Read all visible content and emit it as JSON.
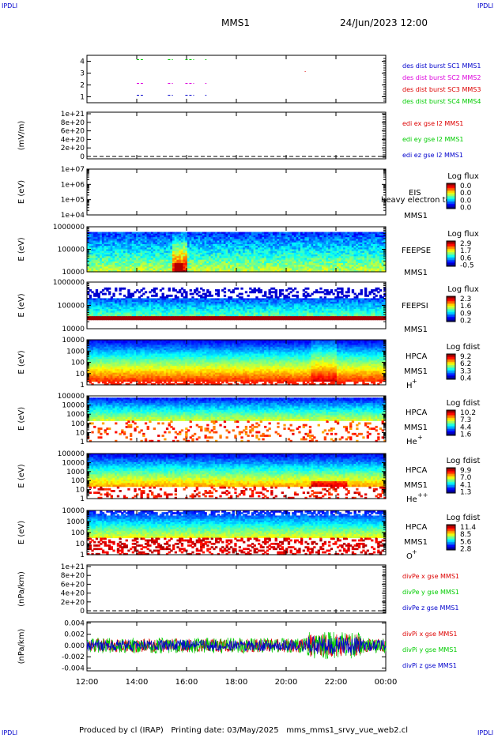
{
  "corners": {
    "tl": "IPDLI",
    "tr": "IPDLI",
    "bl": "IPDLI",
    "br": "IPDLI"
  },
  "header": {
    "spacecraft": "MMS1",
    "date": "24/Jun/2023 12:00"
  },
  "footer": "Produced by cl (IRAP)   Printing date: 03/May/2025   mms_mms1_srvy_vue_web2.cl",
  "colors": {
    "blue": "#0000cc",
    "magenta": "#dd00dd",
    "red": "#dd0000",
    "green": "#00cc00"
  },
  "chart_data": [
    {
      "type": "scatter",
      "panel": "burst",
      "ylim": [
        0.5,
        4.5
      ],
      "yticks": [
        "1",
        "2",
        "3",
        "4"
      ],
      "legend": [
        {
          "text": "des dist burst SC1 MMS1",
          "color": "#0000cc"
        },
        {
          "text": "des dist burst SC2 MMS2",
          "color": "#dd00dd"
        },
        {
          "text": "des dist burst SC3 MMS3",
          "color": "#dd0000"
        },
        {
          "text": "des dist burst SC4 MMS4",
          "color": "#00cc00"
        }
      ],
      "series": [
        {
          "name": "des dist burst SC4 MMS4",
          "y": 4,
          "intervals": [
            [
              14.0,
              14.25
            ],
            [
              15.25,
              15.45
            ],
            [
              15.95,
              16.3
            ],
            [
              16.75,
              16.8
            ]
          ]
        },
        {
          "name": "des dist burst SC3 MMS3",
          "y": 3,
          "intervals": [
            [
              20.75,
              20.78
            ]
          ]
        },
        {
          "name": "des dist burst SC2 MMS2",
          "y": 2,
          "intervals": [
            [
              14.0,
              14.25
            ],
            [
              15.25,
              15.45
            ],
            [
              15.95,
              16.3
            ],
            [
              16.75,
              16.8
            ]
          ]
        },
        {
          "name": "des dist burst SC1 MMS1",
          "y": 1,
          "intervals": [
            [
              14.0,
              14.25
            ],
            [
              15.25,
              15.45
            ],
            [
              15.95,
              16.3
            ],
            [
              16.75,
              16.8
            ]
          ]
        }
      ]
    },
    {
      "type": "line",
      "panel": "edi",
      "ylabel": "(mV/m)",
      "yticks": [
        "0",
        "2e+20",
        "4e+20",
        "6e+20",
        "8e+20",
        "1e+21"
      ],
      "legend": [
        {
          "text": "edi ex gse l2 MMS1",
          "color": "#dd0000"
        },
        {
          "text": "edi ey gse l2 MMS1",
          "color": "#00cc00"
        },
        {
          "text": "edi ez gse l2 MMS1",
          "color": "#0000cc"
        }
      ]
    },
    {
      "type": "heatmap",
      "panel": "eis",
      "ylabel": "E (eV)",
      "yticks": [
        "1e+04",
        "1e+05",
        "1e+06",
        "1e+07"
      ],
      "instrument": "EIS",
      "sc": "MMS1",
      "extra_label": "heavy electron to",
      "cbar_title": "Log flux",
      "cbar_ticks": [
        "0.0",
        "0.0",
        "0.0",
        "0.0"
      ]
    },
    {
      "type": "heatmap",
      "panel": "feeps_e",
      "ylabel": "E (eV)",
      "yticks": [
        "10000",
        "100000",
        "1000000"
      ],
      "instrument": "FEEPSE",
      "sc": "MMS1",
      "cbar_title": "Log flux",
      "cbar_ticks": [
        "2.9",
        "1.7",
        "0.6",
        "-0.5"
      ]
    },
    {
      "type": "heatmap",
      "panel": "feeps_i",
      "ylabel": "E (eV)",
      "yticks": [
        "10000",
        "100000",
        "1000000"
      ],
      "instrument": "FEEPSI",
      "sc": "MMS1",
      "cbar_title": "Log flux",
      "cbar_ticks": [
        "2.3",
        "1.6",
        "0.9",
        "0.2"
      ]
    },
    {
      "type": "heatmap",
      "panel": "hpca_h",
      "ylabel": "E (eV)",
      "yticks": [
        "1",
        "10",
        "100",
        "1000",
        "10000"
      ],
      "instrument": "HPCA",
      "sc": "MMS1",
      "species": "H",
      "charge": "+",
      "cbar_title": "Log fdist",
      "cbar_ticks": [
        "9.2",
        "6.2",
        "3.3",
        "0.4"
      ]
    },
    {
      "type": "heatmap",
      "panel": "hpca_he1",
      "ylabel": "E (eV)",
      "yticks": [
        "1",
        "10",
        "100",
        "1000",
        "10000",
        "100000"
      ],
      "instrument": "HPCA",
      "sc": "MMS1",
      "species": "He",
      "charge": "+",
      "cbar_title": "Log fdist",
      "cbar_ticks": [
        "10.2",
        "7.3",
        "4.4",
        "1.6"
      ]
    },
    {
      "type": "heatmap",
      "panel": "hpca_he2",
      "ylabel": "E (eV)",
      "yticks": [
        "1",
        "10",
        "100",
        "1000",
        "10000",
        "100000"
      ],
      "instrument": "HPCA",
      "sc": "MMS1",
      "species": "He",
      "charge": "++",
      "cbar_title": "Log fdist",
      "cbar_ticks": [
        "9.9",
        "7.0",
        "4.1",
        "1.3"
      ]
    },
    {
      "type": "heatmap",
      "panel": "hpca_o",
      "ylabel": "E (eV)",
      "yticks": [
        "1",
        "10",
        "100",
        "1000",
        "10000"
      ],
      "instrument": "HPCA",
      "sc": "MMS1",
      "species": "O",
      "charge": "+",
      "cbar_title": "Log fdist",
      "cbar_ticks": [
        "11.4",
        "8.5",
        "5.6",
        "2.8"
      ]
    },
    {
      "type": "line",
      "panel": "dpe",
      "ylabel": "(nPa/km)",
      "yticks": [
        "0",
        "2e+20",
        "4e+20",
        "6e+20",
        "8e+20",
        "1e+21"
      ],
      "legend": [
        {
          "text": "divPe x gse MMS1",
          "color": "#dd0000"
        },
        {
          "text": "divPe y gse MMS1",
          "color": "#00cc00"
        },
        {
          "text": "divPe z gse MMS1",
          "color": "#0000cc"
        }
      ]
    },
    {
      "type": "line",
      "panel": "dpi",
      "ylabel": "(nPa/km)",
      "ylim": [
        -0.0045,
        0.0042
      ],
      "yticks": [
        "-0.004",
        "-0.002",
        "0.000",
        "0.002",
        "0.004"
      ],
      "legend": [
        {
          "text": "divPi x gse MMS1",
          "color": "#dd0000"
        },
        {
          "text": "divPi y gse MMS1",
          "color": "#00cc00"
        },
        {
          "text": "divPi z gse MMS1",
          "color": "#0000cc"
        }
      ],
      "series": [
        {
          "name": "divPi x gse MMS1",
          "color": "#dd0000",
          "amplitude": 0.0012
        },
        {
          "name": "divPi y gse MMS1",
          "color": "#00cc00",
          "amplitude": 0.0014
        },
        {
          "name": "divPi z gse MMS1",
          "color": "#0000cc",
          "amplitude": 0.001
        }
      ]
    }
  ],
  "xaxis": {
    "range": [
      12,
      24
    ],
    "ticks": [
      "12:00",
      "14:00",
      "16:00",
      "18:00",
      "20:00",
      "22:00",
      "00:00"
    ]
  }
}
